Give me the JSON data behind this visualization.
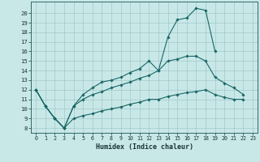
{
  "xlabel": "Humidex (Indice chaleur)",
  "bg_color": "#c8e8e8",
  "grid_color": "#9bbfbf",
  "line_color": "#1a6666",
  "xlim": [
    -0.5,
    23.5
  ],
  "ylim": [
    7.5,
    21.2
  ],
  "xticks": [
    0,
    1,
    2,
    3,
    4,
    5,
    6,
    7,
    8,
    9,
    10,
    11,
    12,
    13,
    14,
    15,
    16,
    17,
    18,
    19,
    20,
    21,
    22,
    23
  ],
  "yticks": [
    8,
    9,
    10,
    11,
    12,
    13,
    14,
    15,
    16,
    17,
    18,
    19,
    20
  ],
  "curve1_x": [
    0,
    1,
    2,
    3,
    4,
    5,
    6,
    7,
    8,
    9,
    10,
    11,
    12,
    13,
    14,
    15,
    16,
    17,
    18,
    19
  ],
  "curve1_y": [
    12.0,
    10.3,
    9.0,
    8.0,
    10.3,
    11.5,
    12.2,
    12.8,
    13.0,
    13.3,
    13.8,
    14.2,
    15.0,
    14.0,
    17.5,
    19.3,
    19.5,
    20.5,
    20.3,
    16.0
  ],
  "curve2_x": [
    0,
    1,
    2,
    3,
    4,
    5,
    6,
    7,
    8,
    9,
    10,
    11,
    12,
    13,
    14,
    15,
    16,
    17,
    18,
    19,
    20,
    21,
    22
  ],
  "curve2_y": [
    12.0,
    10.3,
    9.0,
    8.0,
    10.3,
    11.0,
    11.5,
    11.8,
    12.2,
    12.5,
    12.8,
    13.2,
    13.5,
    14.0,
    15.0,
    15.2,
    15.5,
    15.5,
    15.0,
    13.3,
    12.7,
    12.2,
    11.5
  ],
  "curve3_x": [
    0,
    1,
    2,
    3,
    4,
    5,
    6,
    7,
    8,
    9,
    10,
    11,
    12,
    13,
    14,
    15,
    16,
    17,
    18,
    19,
    20,
    21,
    22
  ],
  "curve3_y": [
    12.0,
    10.3,
    9.0,
    8.0,
    9.0,
    9.3,
    9.5,
    9.8,
    10.0,
    10.2,
    10.5,
    10.7,
    11.0,
    11.0,
    11.3,
    11.5,
    11.7,
    11.8,
    12.0,
    11.5,
    11.2,
    11.0,
    11.0
  ]
}
